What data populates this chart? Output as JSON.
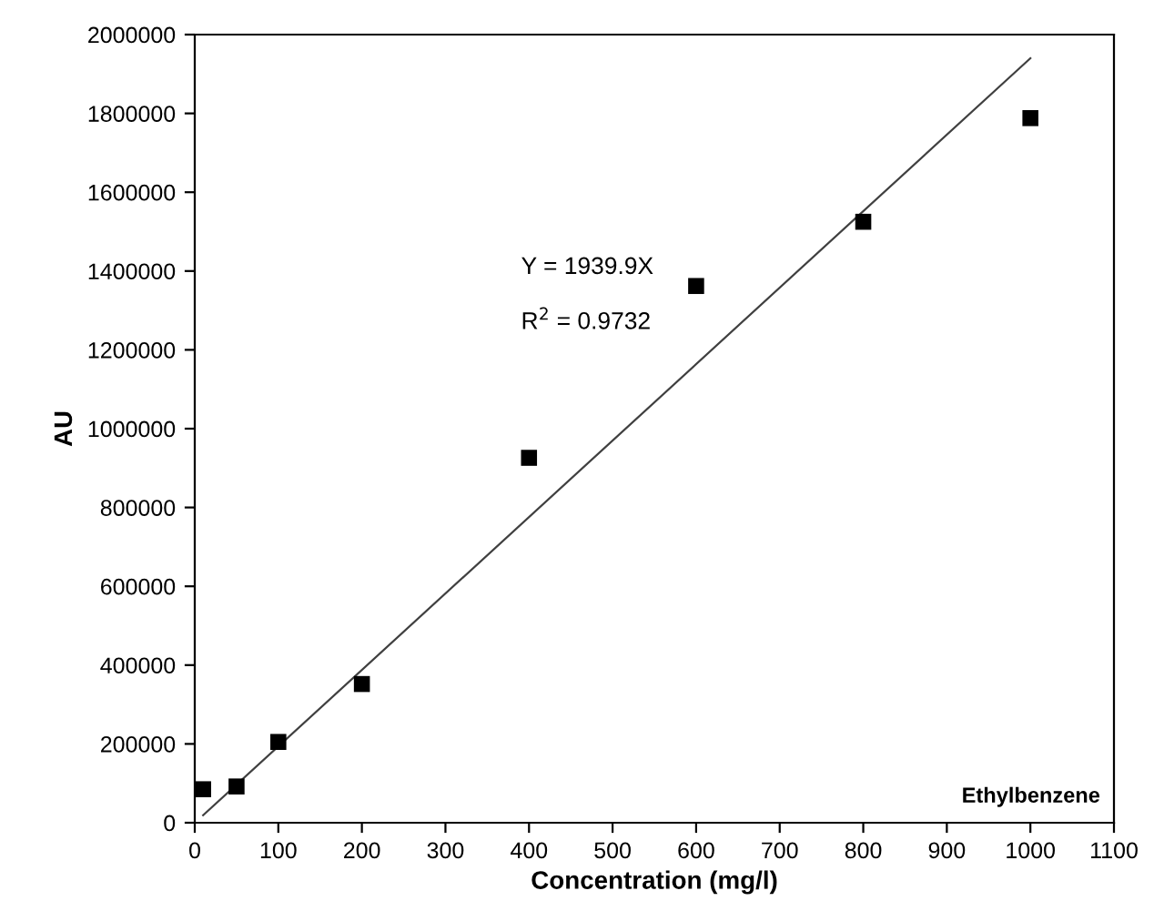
{
  "chart_data": {
    "type": "scatter",
    "xlabel": "Concentration (mg/l)",
    "ylabel": "AU",
    "xlim": [
      0,
      1100
    ],
    "xticks": [
      0,
      100,
      200,
      300,
      400,
      500,
      600,
      700,
      800,
      900,
      1000,
      1100
    ],
    "ylim": [
      0,
      2000000
    ],
    "yticks": [
      0,
      200000,
      400000,
      600000,
      800000,
      1000000,
      1200000,
      1400000,
      1600000,
      1800000,
      2000000
    ],
    "series": [
      {
        "color": "#000000",
        "marker": "square",
        "x": [
          10,
          50,
          100,
          200,
          400,
          600,
          800,
          1000
        ],
        "values": [
          85000,
          92000,
          205000,
          352000,
          926000,
          1362000,
          1525000,
          1788000
        ]
      },
      {
        "type": "line",
        "color": "#404040",
        "x": [
          10,
          1000
        ],
        "values": [
          19000,
          1940000
        ]
      }
    ],
    "annotations": [
      "Y = 1939.9X",
      "R$^{2}$ = 0.9732",
      "Ethylbenzene"
    ]
  }
}
